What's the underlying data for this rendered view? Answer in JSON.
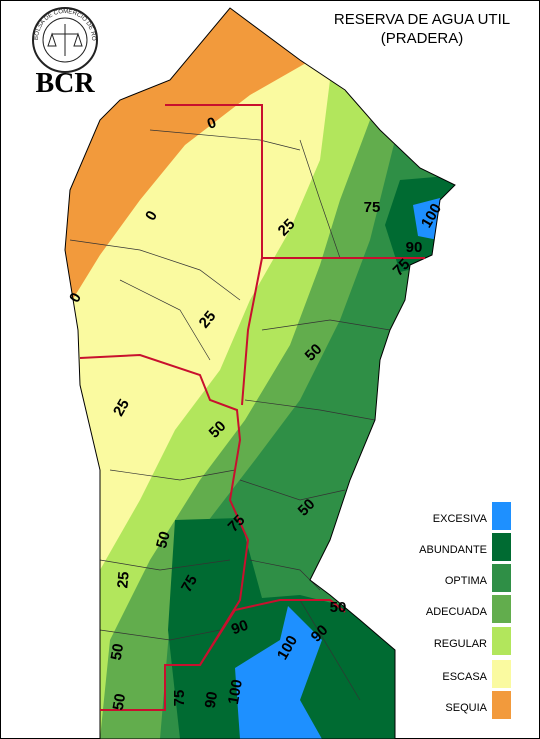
{
  "header": {
    "title_lines": [
      "RESERVA DE AGUA UTIL",
      "(PRADERA)"
    ],
    "logo": "BCR",
    "logo_ring": "BOLSA DE COMERCIO DE ROSARIO"
  },
  "legend": [
    {
      "label": "EXCESIVA",
      "color": "#1e90ff"
    },
    {
      "label": "ABUNDANTE",
      "color": "#006b32"
    },
    {
      "label": "OPTIMA",
      "color": "#2f8f46"
    },
    {
      "label": "ADECUADA",
      "color": "#62ad4d"
    },
    {
      "label": "REGULAR",
      "color": "#b2e65c"
    },
    {
      "label": "ESCASA",
      "color": "#fafaa0"
    },
    {
      "label": "SEQUIA",
      "color": "#f29a3c"
    }
  ],
  "contour_labels": [
    0,
    0,
    0,
    25,
    25,
    25,
    50,
    50,
    50,
    50,
    75,
    90,
    100,
    25,
    50,
    75,
    75,
    90,
    90,
    100,
    75,
    90,
    100,
    50,
    50,
    75
  ]
}
